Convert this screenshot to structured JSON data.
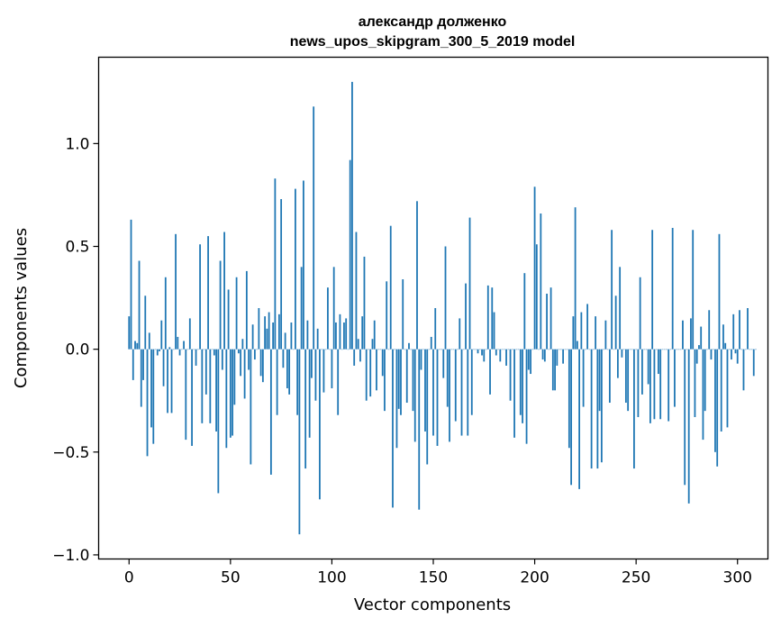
{
  "chart_data": {
    "type": "bar",
    "title_line1": "александр долженко",
    "title_line2": "news_upos_skipgram_300_5_2019 model",
    "xlabel": "Vector components",
    "ylabel": "Components values",
    "xlim": [
      -15,
      315
    ],
    "ylim": [
      -1.02,
      1.42
    ],
    "xticks": [
      0,
      50,
      100,
      150,
      200,
      250,
      300
    ],
    "xtick_labels": [
      "0",
      "50",
      "100",
      "150",
      "200",
      "250",
      "300"
    ],
    "yticks": [
      -1.0,
      -0.5,
      0.0,
      0.5,
      1.0
    ],
    "ytick_labels": [
      "−1.0",
      "−0.5",
      "0.0",
      "0.5",
      "1.0"
    ],
    "bar_color": "#1f77b4",
    "values": [
      0.16,
      0.63,
      -0.15,
      0.04,
      0.03,
      0.43,
      -0.28,
      -0.15,
      0.26,
      -0.52,
      0.08,
      -0.38,
      -0.46,
      0.0,
      -0.03,
      -0.01,
      0.14,
      -0.18,
      0.35,
      -0.31,
      0.01,
      -0.31,
      0.0,
      0.56,
      0.06,
      -0.03,
      0.0,
      0.04,
      -0.44,
      0.0,
      0.15,
      -0.47,
      0.0,
      -0.08,
      0.0,
      0.51,
      -0.36,
      0.0,
      -0.22,
      0.55,
      -0.36,
      0.0,
      -0.03,
      -0.4,
      -0.7,
      0.43,
      -0.1,
      0.57,
      -0.48,
      0.29,
      -0.43,
      -0.42,
      -0.27,
      0.35,
      -0.02,
      -0.13,
      0.05,
      -0.24,
      0.38,
      -0.1,
      -0.56,
      0.12,
      -0.05,
      0.0,
      0.2,
      -0.13,
      -0.16,
      0.16,
      0.1,
      0.18,
      -0.61,
      0.13,
      0.83,
      -0.32,
      0.17,
      0.73,
      -0.09,
      0.08,
      -0.19,
      -0.22,
      0.13,
      0.0,
      0.78,
      -0.32,
      -0.9,
      0.4,
      0.82,
      -0.58,
      0.14,
      -0.43,
      -0.14,
      1.18,
      -0.25,
      0.1,
      -0.73,
      0.0,
      -0.21,
      0.0,
      0.3,
      0.0,
      -0.19,
      0.4,
      0.13,
      -0.32,
      0.17,
      0.0,
      0.13,
      0.15,
      0.0,
      0.92,
      1.3,
      -0.08,
      0.57,
      0.05,
      -0.06,
      0.16,
      0.45,
      -0.25,
      0.0,
      -0.23,
      0.05,
      0.14,
      -0.2,
      0.0,
      0.0,
      -0.13,
      -0.3,
      0.33,
      0.0,
      0.6,
      -0.77,
      0.0,
      -0.48,
      -0.29,
      -0.32,
      0.34,
      0.0,
      -0.26,
      0.03,
      0.0,
      -0.3,
      -0.45,
      0.72,
      -0.78,
      -0.1,
      0.0,
      -0.4,
      -0.56,
      0.0,
      0.06,
      -0.42,
      0.2,
      -0.47,
      0.0,
      0.0,
      -0.14,
      0.5,
      -0.28,
      -0.45,
      0.0,
      0.0,
      -0.35,
      0.0,
      0.15,
      -0.42,
      0.0,
      0.32,
      -0.42,
      0.64,
      -0.32,
      0.0,
      0.0,
      -0.02,
      0.0,
      -0.03,
      -0.06,
      0.0,
      0.31,
      -0.22,
      0.3,
      0.18,
      -0.03,
      0.0,
      -0.06,
      0.0,
      0.0,
      -0.08,
      0.0,
      -0.25,
      0.0,
      -0.43,
      0.0,
      0.0,
      -0.32,
      -0.36,
      0.37,
      -0.46,
      -0.1,
      -0.12,
      0.0,
      0.79,
      0.51,
      0.0,
      0.66,
      -0.05,
      -0.06,
      0.27,
      0.0,
      0.3,
      -0.2,
      -0.2,
      -0.08,
      0.0,
      0.0,
      -0.07,
      0.0,
      0.0,
      -0.48,
      -0.66,
      0.16,
      0.69,
      0.04,
      -0.68,
      0.18,
      -0.28,
      0.0,
      0.22,
      0.0,
      -0.58,
      0.0,
      0.16,
      -0.58,
      -0.3,
      -0.55,
      0.0,
      0.14,
      0.0,
      -0.26,
      0.58,
      0.0,
      0.26,
      -0.14,
      0.4,
      -0.04,
      0.0,
      -0.26,
      -0.3,
      0.0,
      0.0,
      -0.58,
      0.0,
      -0.33,
      0.35,
      -0.22,
      0.0,
      0.0,
      -0.17,
      -0.36,
      0.58,
      -0.34,
      0.0,
      -0.12,
      -0.34,
      0.0,
      0.0,
      0.0,
      -0.35,
      0.0,
      0.59,
      -0.28,
      0.0,
      0.0,
      0.0,
      0.14,
      -0.66,
      0.0,
      -0.75,
      0.15,
      0.58,
      -0.33,
      -0.07,
      0.02,
      0.11,
      -0.44,
      -0.3,
      0.0,
      0.19,
      -0.05,
      0.0,
      -0.5,
      -0.57,
      0.56,
      -0.4,
      0.12,
      0.03,
      -0.38,
      0.0,
      -0.05,
      0.17,
      -0.02,
      -0.07,
      0.19,
      0.0,
      -0.2,
      0.0,
      0.2,
      0.0,
      0.0,
      -0.13,
      0.0
    ]
  }
}
